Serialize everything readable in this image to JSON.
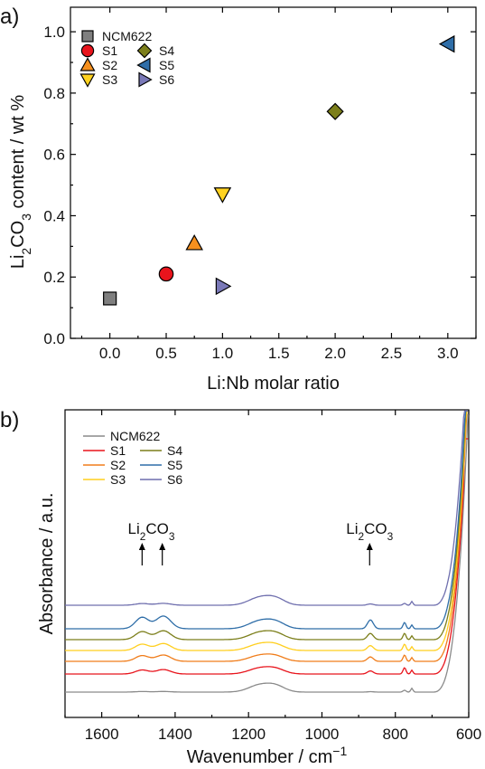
{
  "chart_data": [
    {
      "type": "scatter",
      "panel_label": "a)",
      "xlabel": "Li:Nb molar ratio",
      "ylabel_parts": [
        "Li",
        "2",
        "CO",
        "3",
        " content / wt %"
      ],
      "xlim": [
        -0.35,
        3.25
      ],
      "ylim": [
        0.0,
        1.08
      ],
      "xticks": [
        "0.0",
        "0.5",
        "1.0",
        "1.5",
        "2.0",
        "2.5",
        "3.0"
      ],
      "yticks": [
        "0.0",
        "0.2",
        "0.4",
        "0.6",
        "0.8",
        "1.0"
      ],
      "grid": false,
      "legend_position": "top-left",
      "series": [
        {
          "name": "NCM622",
          "marker": "square",
          "color": "#7f7f7f",
          "x": 0.0,
          "y": 0.13
        },
        {
          "name": "S1",
          "marker": "circle",
          "color": "#e8141c",
          "x": 0.5,
          "y": 0.21
        },
        {
          "name": "S2",
          "marker": "triangle-up",
          "color": "#f7901e",
          "x": 0.75,
          "y": 0.31
        },
        {
          "name": "S3",
          "marker": "triangle-down",
          "color": "#ffd21f",
          "x": 1.0,
          "y": 0.47
        },
        {
          "name": "S4",
          "marker": "diamond",
          "color": "#7c7f1b",
          "x": 2.0,
          "y": 0.74
        },
        {
          "name": "S5",
          "marker": "triangle-left",
          "color": "#2f6ea8",
          "x": 3.0,
          "y": 0.96
        },
        {
          "name": "S6",
          "marker": "triangle-right",
          "color": "#7a79b8",
          "x": 1.0,
          "y": 0.17
        }
      ]
    },
    {
      "type": "line",
      "panel_label": "b)",
      "xlabel_parts": [
        "Wavenumber / cm",
        "−1"
      ],
      "ylabel": "Absorbance / a.u.",
      "xlim": [
        1700,
        600
      ],
      "x_reversed": true,
      "xticks": [
        "1600",
        "1400",
        "1200",
        "1000",
        "800",
        "600"
      ],
      "yticks": [],
      "grid": false,
      "legend_position": "top-left",
      "annotations": [
        {
          "parts": [
            "Li",
            "2",
            "CO",
            "3"
          ],
          "x": 1465,
          "arrows_x": [
            1490,
            1435
          ]
        },
        {
          "parts": [
            "Li",
            "2",
            "CO",
            "3"
          ],
          "x": 870,
          "arrows_x": [
            870
          ]
        }
      ],
      "series": [
        {
          "name": "NCM622",
          "color": "#8a8a8a",
          "offset": 0.0
        },
        {
          "name": "S1",
          "color": "#e8141c",
          "offset": 1.0
        },
        {
          "name": "S2",
          "color": "#f07d1b",
          "offset": 1.7
        },
        {
          "name": "S3",
          "color": "#ffcf1f",
          "offset": 2.3
        },
        {
          "name": "S4",
          "color": "#7c7f1b",
          "offset": 2.9
        },
        {
          "name": "S5",
          "color": "#2f6ea8",
          "offset": 3.5
        },
        {
          "name": "S6",
          "color": "#6f6fae",
          "offset": 4.8
        }
      ]
    }
  ]
}
